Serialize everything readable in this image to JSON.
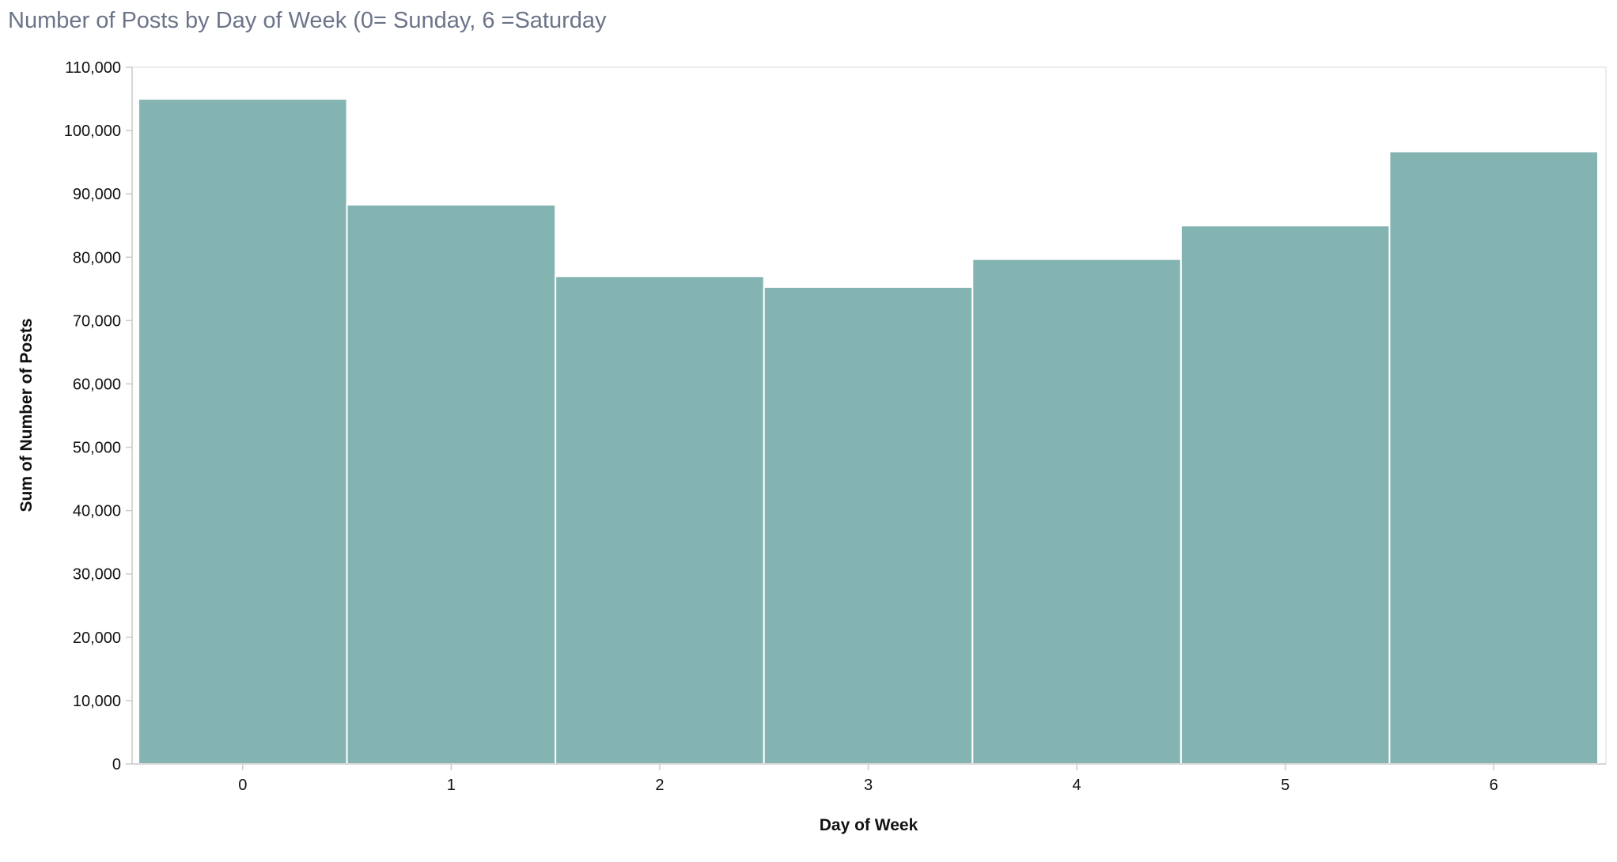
{
  "chart_data": {
    "type": "bar",
    "title": "Number of Posts by Day of Week (0= Sunday, 6 =Saturday",
    "xlabel": "Day of Week",
    "ylabel": "Sum of Number of Posts",
    "categories": [
      "0",
      "1",
      "2",
      "3",
      "4",
      "5",
      "6"
    ],
    "values": [
      105000,
      88300,
      77000,
      75300,
      79700,
      85000,
      96700
    ],
    "ylim": [
      0,
      110000
    ],
    "yticks": [
      0,
      10000,
      20000,
      30000,
      40000,
      50000,
      60000,
      70000,
      80000,
      90000,
      100000,
      110000
    ],
    "ytick_labels": [
      "0",
      "10,000",
      "20,000",
      "30,000",
      "40,000",
      "50,000",
      "60,000",
      "70,000",
      "80,000",
      "90,000",
      "100,000",
      "110,000"
    ],
    "grid": false,
    "legend": "none",
    "bar_color": "#84b4b1"
  }
}
